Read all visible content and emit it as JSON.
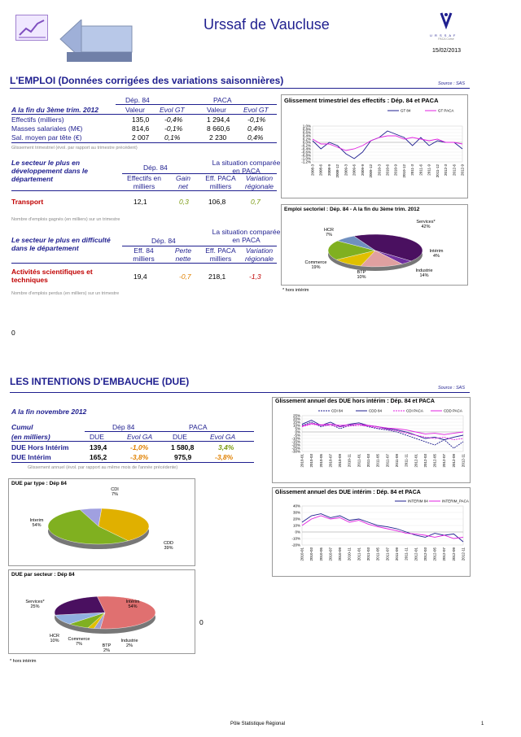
{
  "header": {
    "title": "Urssaf de Vaucluse",
    "date": "15/02/2013",
    "logo_text": "U R S S A F",
    "logo_sub": "PACA Corse"
  },
  "section1": {
    "title": "L'EMPLOI (Données corrigées des variations saisonnières)",
    "source": "Source : SAS",
    "table1": {
      "row_label": "A la fin du 3ème trim. 2012",
      "dep": "Dép. 84",
      "paca": "PACA",
      "cols": [
        "Valeur",
        "Evol GT",
        "Valeur",
        "Evol GT"
      ],
      "rows": [
        {
          "label": "Effectifs (milliers)",
          "v1": "135,0",
          "e1": "-0,4%",
          "v2": "1 294,4",
          "e2": "-0,1%"
        },
        {
          "label": "Masses salariales (M€)",
          "v1": "814,6",
          "e1": "-0,1%",
          "v2": "8 660,6",
          "e2": "0,4%"
        },
        {
          "label": "Sal. moyen par tête (€)",
          "v1": "2 007",
          "e1": "0,1%",
          "v2": "2 230",
          "e2": "0,4%"
        }
      ],
      "note": "Glissement trimestriel (évol. par rapport au trimestre précédent)"
    },
    "table2": {
      "label": "Le secteur le plus en développement dans le département",
      "dep": "Dép. 84",
      "compare": "La situation comparée en PACA",
      "c1": "Effectifs en milliers",
      "c2": "Gain net",
      "c3": "Eff. PACA milliers",
      "c4": "Variation régionale",
      "sector": "Transport",
      "v1": "12,1",
      "v2": "0,3",
      "v3": "106,8",
      "v4": "0,7",
      "note": "Nombre d'emplois gagnés (en milliers) sur un trimestre"
    },
    "table3": {
      "label": "Le secteur le plus en difficulté dans le département",
      "dep": "Dép. 84",
      "compare": "La situation comparée en PACA",
      "c1": "Eff. 84 milliers",
      "c2": "Perte nette",
      "c3": "Eff. PACA milliers",
      "c4": "Variation régionale",
      "sector": "Activités scientifiques et techniques",
      "v1": "19,4",
      "v2": "-0,7",
      "v3": "218,1",
      "v4": "-1,3",
      "note": "Nombre d'emplois perdus (en milliers) sur un trimestre"
    },
    "zero": "0"
  },
  "section2": {
    "title": "LES INTENTIONS D'EMBAUCHE (DUE)",
    "source": "Source : SAS",
    "period": "A la fin novembre 2012",
    "table": {
      "cumul": "Cumul",
      "unit": "(en milliers)",
      "dep": "Dép 84",
      "paca": "PACA",
      "cols": [
        "DUE",
        "Evol GA",
        "DUE",
        "Evol GA"
      ],
      "rows": [
        {
          "label": "DUE Hors Intérim",
          "v1": "139,4",
          "e1": "-1,0%",
          "v2": "1 580,8",
          "e2": "3,4%"
        },
        {
          "label": "DUE Intérim",
          "v1": "165,2",
          "e1": "-3,8%",
          "v2": "975,9",
          "e2": "-3,8%"
        }
      ],
      "note": "Glissement annuel (évol. par rapport au même mois de l'année précédente)"
    },
    "zero": "0"
  },
  "footer": {
    "center": "Pôle Statistique Régional",
    "page": "1"
  },
  "chart_data": [
    {
      "type": "line",
      "title": "Glissement trimestriel des effectifs : Dép. 84 et PACA",
      "x": [
        "2008-3",
        "2008-6",
        "2008-9",
        "2008-12",
        "2009-3",
        "2009-6",
        "2009-9",
        "2009-12",
        "2010-3",
        "2010-6",
        "2010-9",
        "2010-12",
        "2011-3",
        "2011-6",
        "2011-9",
        "2011-12",
        "2012-3",
        "2012-6",
        "2012-9"
      ],
      "ylim": [
        -1.2,
        1.0
      ],
      "yticks": [
        "1,0%",
        "0,8%",
        "0,6%",
        "0,4%",
        "0,2%",
        "0,0%",
        "-0,2%",
        "-0,4%",
        "-0,6%",
        "-0,8%",
        "-1,0%",
        "-1,2%"
      ],
      "series": [
        {
          "name": "GT 84",
          "color": "#1f1f8f",
          "values": [
            0.1,
            -0.4,
            0.0,
            -0.2,
            -0.7,
            -1.0,
            -0.6,
            0.1,
            0.3,
            0.7,
            0.5,
            0.3,
            -0.2,
            0.3,
            -0.2,
            0.1,
            0.0,
            0.0,
            -0.4
          ]
        },
        {
          "name": "GT PACA",
          "color": "#e020e0",
          "values": [
            0.2,
            -0.1,
            -0.1,
            -0.3,
            -0.5,
            -0.4,
            -0.2,
            0.1,
            0.3,
            0.4,
            0.4,
            0.2,
            0.3,
            0.2,
            0.1,
            0.2,
            0.0,
            0.0,
            -0.1
          ]
        }
      ]
    },
    {
      "type": "pie",
      "title": "Emploi sectoriel : Dép. 84 - A la fin du 3ème trim. 2012",
      "labels": [
        "Services*",
        "Intérim",
        "Industrie",
        "BTP",
        "Commerce",
        "HCR"
      ],
      "values": [
        42,
        4,
        14,
        10,
        19,
        7
      ],
      "percent_labels": [
        "42%",
        "4%",
        "14%",
        "10%",
        "19%",
        "7%"
      ],
      "colors": [
        "#4a1060",
        "#7030a0",
        "#e0a0a0",
        "#e0c000",
        "#80b020",
        "#7090c0"
      ],
      "note": "* hors intérim"
    },
    {
      "type": "line",
      "title": "Glissement annuel des DUE hors intérim : Dép. 84 et PACA",
      "x": [
        "2010-01",
        "2010-03",
        "2010-05",
        "2010-07",
        "2010-09",
        "2010-11",
        "2011-01",
        "2011-03",
        "2011-05",
        "2011-07",
        "2011-09",
        "2011-11",
        "2012-01",
        "2012-03",
        "2012-05",
        "2012-07",
        "2012-09",
        "2012-11"
      ],
      "ylim": [
        -30,
        25
      ],
      "yticks": [
        "25%",
        "20%",
        "15%",
        "10%",
        "5%",
        "0%",
        "-5%",
        "-10%",
        "-15%",
        "-20%",
        "-25%",
        "-30%"
      ],
      "series": [
        {
          "name": "CDI 84",
          "color": "#1f1f8f",
          "dashed": true,
          "values": [
            10,
            15,
            8,
            12,
            5,
            10,
            12,
            8,
            5,
            3,
            0,
            -5,
            -10,
            -15,
            -20,
            -12,
            -25,
            -15
          ]
        },
        {
          "name": "CDD 84",
          "color": "#1f1f8f",
          "values": [
            12,
            18,
            10,
            15,
            8,
            12,
            14,
            10,
            8,
            5,
            3,
            0,
            -5,
            -10,
            -8,
            -12,
            -8,
            -5
          ]
        },
        {
          "name": "CDI PACA",
          "color": "#e020e0",
          "dashed": true,
          "values": [
            8,
            12,
            10,
            10,
            8,
            9,
            10,
            9,
            6,
            4,
            2,
            -2,
            -5,
            -8,
            -10,
            -8,
            -12,
            -10
          ]
        },
        {
          "name": "CDD PACA",
          "color": "#e020e0",
          "values": [
            9,
            13,
            11,
            12,
            10,
            11,
            12,
            10,
            8,
            6,
            5,
            3,
            0,
            -3,
            -2,
            -4,
            -2,
            0
          ]
        }
      ]
    },
    {
      "type": "line",
      "title": "Glissement annuel des DUE intérim : Dép. 84 et PACA",
      "x": [
        "2010-01",
        "2010-03",
        "2010-05",
        "2010-07",
        "2010-09",
        "2010-11",
        "2011-01",
        "2011-03",
        "2011-05",
        "2011-07",
        "2011-09",
        "2011-11",
        "2012-01",
        "2012-03",
        "2012-05",
        "2012-07",
        "2012-09",
        "2012-11"
      ],
      "ylim": [
        -20,
        40
      ],
      "yticks": [
        "40%",
        "30%",
        "20%",
        "10%",
        "0%",
        "-10%",
        "-20%"
      ],
      "series": [
        {
          "name": "INTERIM 84",
          "color": "#1f1f8f",
          "values": [
            15,
            25,
            28,
            22,
            25,
            18,
            20,
            15,
            10,
            8,
            5,
            0,
            -5,
            -8,
            -2,
            -5,
            -3,
            -15
          ]
        },
        {
          "name": "INTERIM_PACA",
          "color": "#e020e0",
          "values": [
            10,
            20,
            25,
            20,
            22,
            15,
            18,
            12,
            8,
            5,
            2,
            -2,
            -3,
            -5,
            -8,
            -5,
            -10,
            -8
          ]
        }
      ]
    },
    {
      "type": "pie",
      "title": "DUE par type : Dép 84",
      "labels": [
        "CDI",
        "CDD",
        "Interim"
      ],
      "values": [
        7,
        39,
        54
      ],
      "percent_labels": [
        "7%",
        "39%",
        "54%"
      ],
      "colors": [
        "#a0a0e0",
        "#e0b000",
        "#80b020"
      ]
    },
    {
      "type": "pie",
      "title": "DUE par secteur : Dép 84",
      "labels": [
        "Intérim",
        "Industrie",
        "BTP",
        "Commerce",
        "HCR",
        "Services*"
      ],
      "values": [
        54,
        2,
        2,
        7,
        10,
        25
      ],
      "percent_labels": [
        "54%",
        "2%",
        "2%",
        "7%",
        "10%",
        "25%"
      ],
      "colors": [
        "#e07070",
        "#a0a0d0",
        "#e0c000",
        "#80b020",
        "#90b0e0",
        "#4a1060"
      ],
      "note": "* hors intérim"
    }
  ]
}
